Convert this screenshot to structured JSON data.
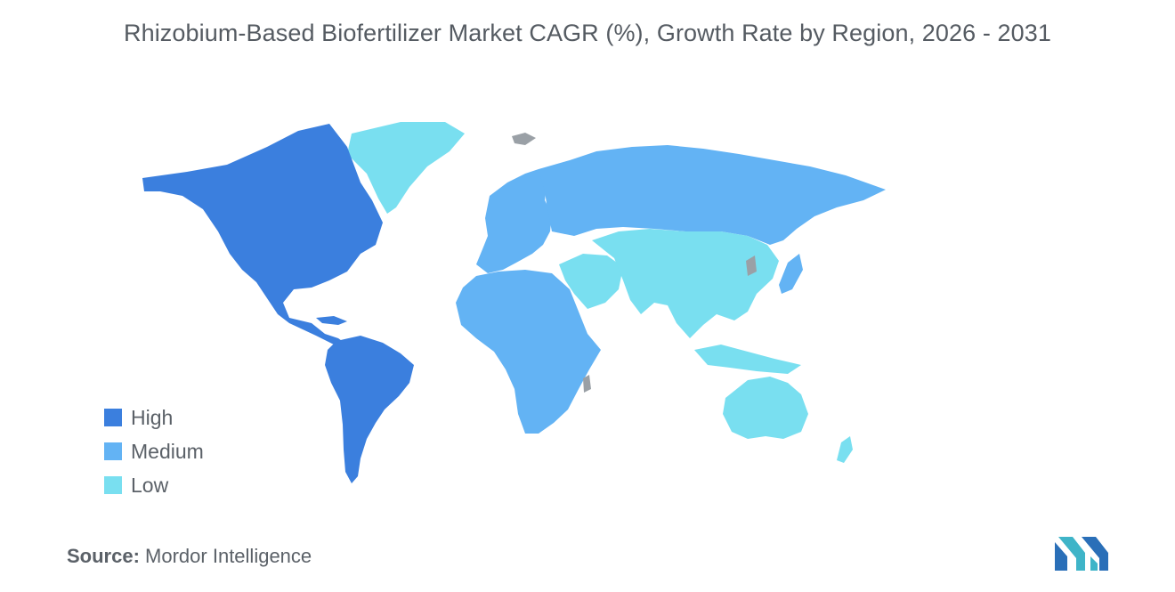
{
  "title": "Rhizobium-Based Biofertilizer Market CAGR (%), Growth Rate by Region, 2026 - 2031",
  "legend": [
    {
      "label": "High",
      "color": "#3b7fde"
    },
    {
      "label": "Medium",
      "color": "#63b3f4"
    },
    {
      "label": "Low",
      "color": "#79dff0"
    }
  ],
  "regions": [
    {
      "name": "North America",
      "category": "High"
    },
    {
      "name": "South America",
      "category": "High"
    },
    {
      "name": "Europe",
      "category": "Medium"
    },
    {
      "name": "Russia",
      "category": "Medium"
    },
    {
      "name": "Africa",
      "category": "Medium"
    },
    {
      "name": "Greenland",
      "category": "Low"
    },
    {
      "name": "Middle East",
      "category": "Low"
    },
    {
      "name": "Asia",
      "category": "Low"
    },
    {
      "name": "Oceania",
      "category": "Low"
    }
  ],
  "no_data_color": "#9aa0a6",
  "source": {
    "label": "Source:",
    "value": "Mordor Intelligence"
  },
  "logo_icon": "mordor-intelligence-logo"
}
